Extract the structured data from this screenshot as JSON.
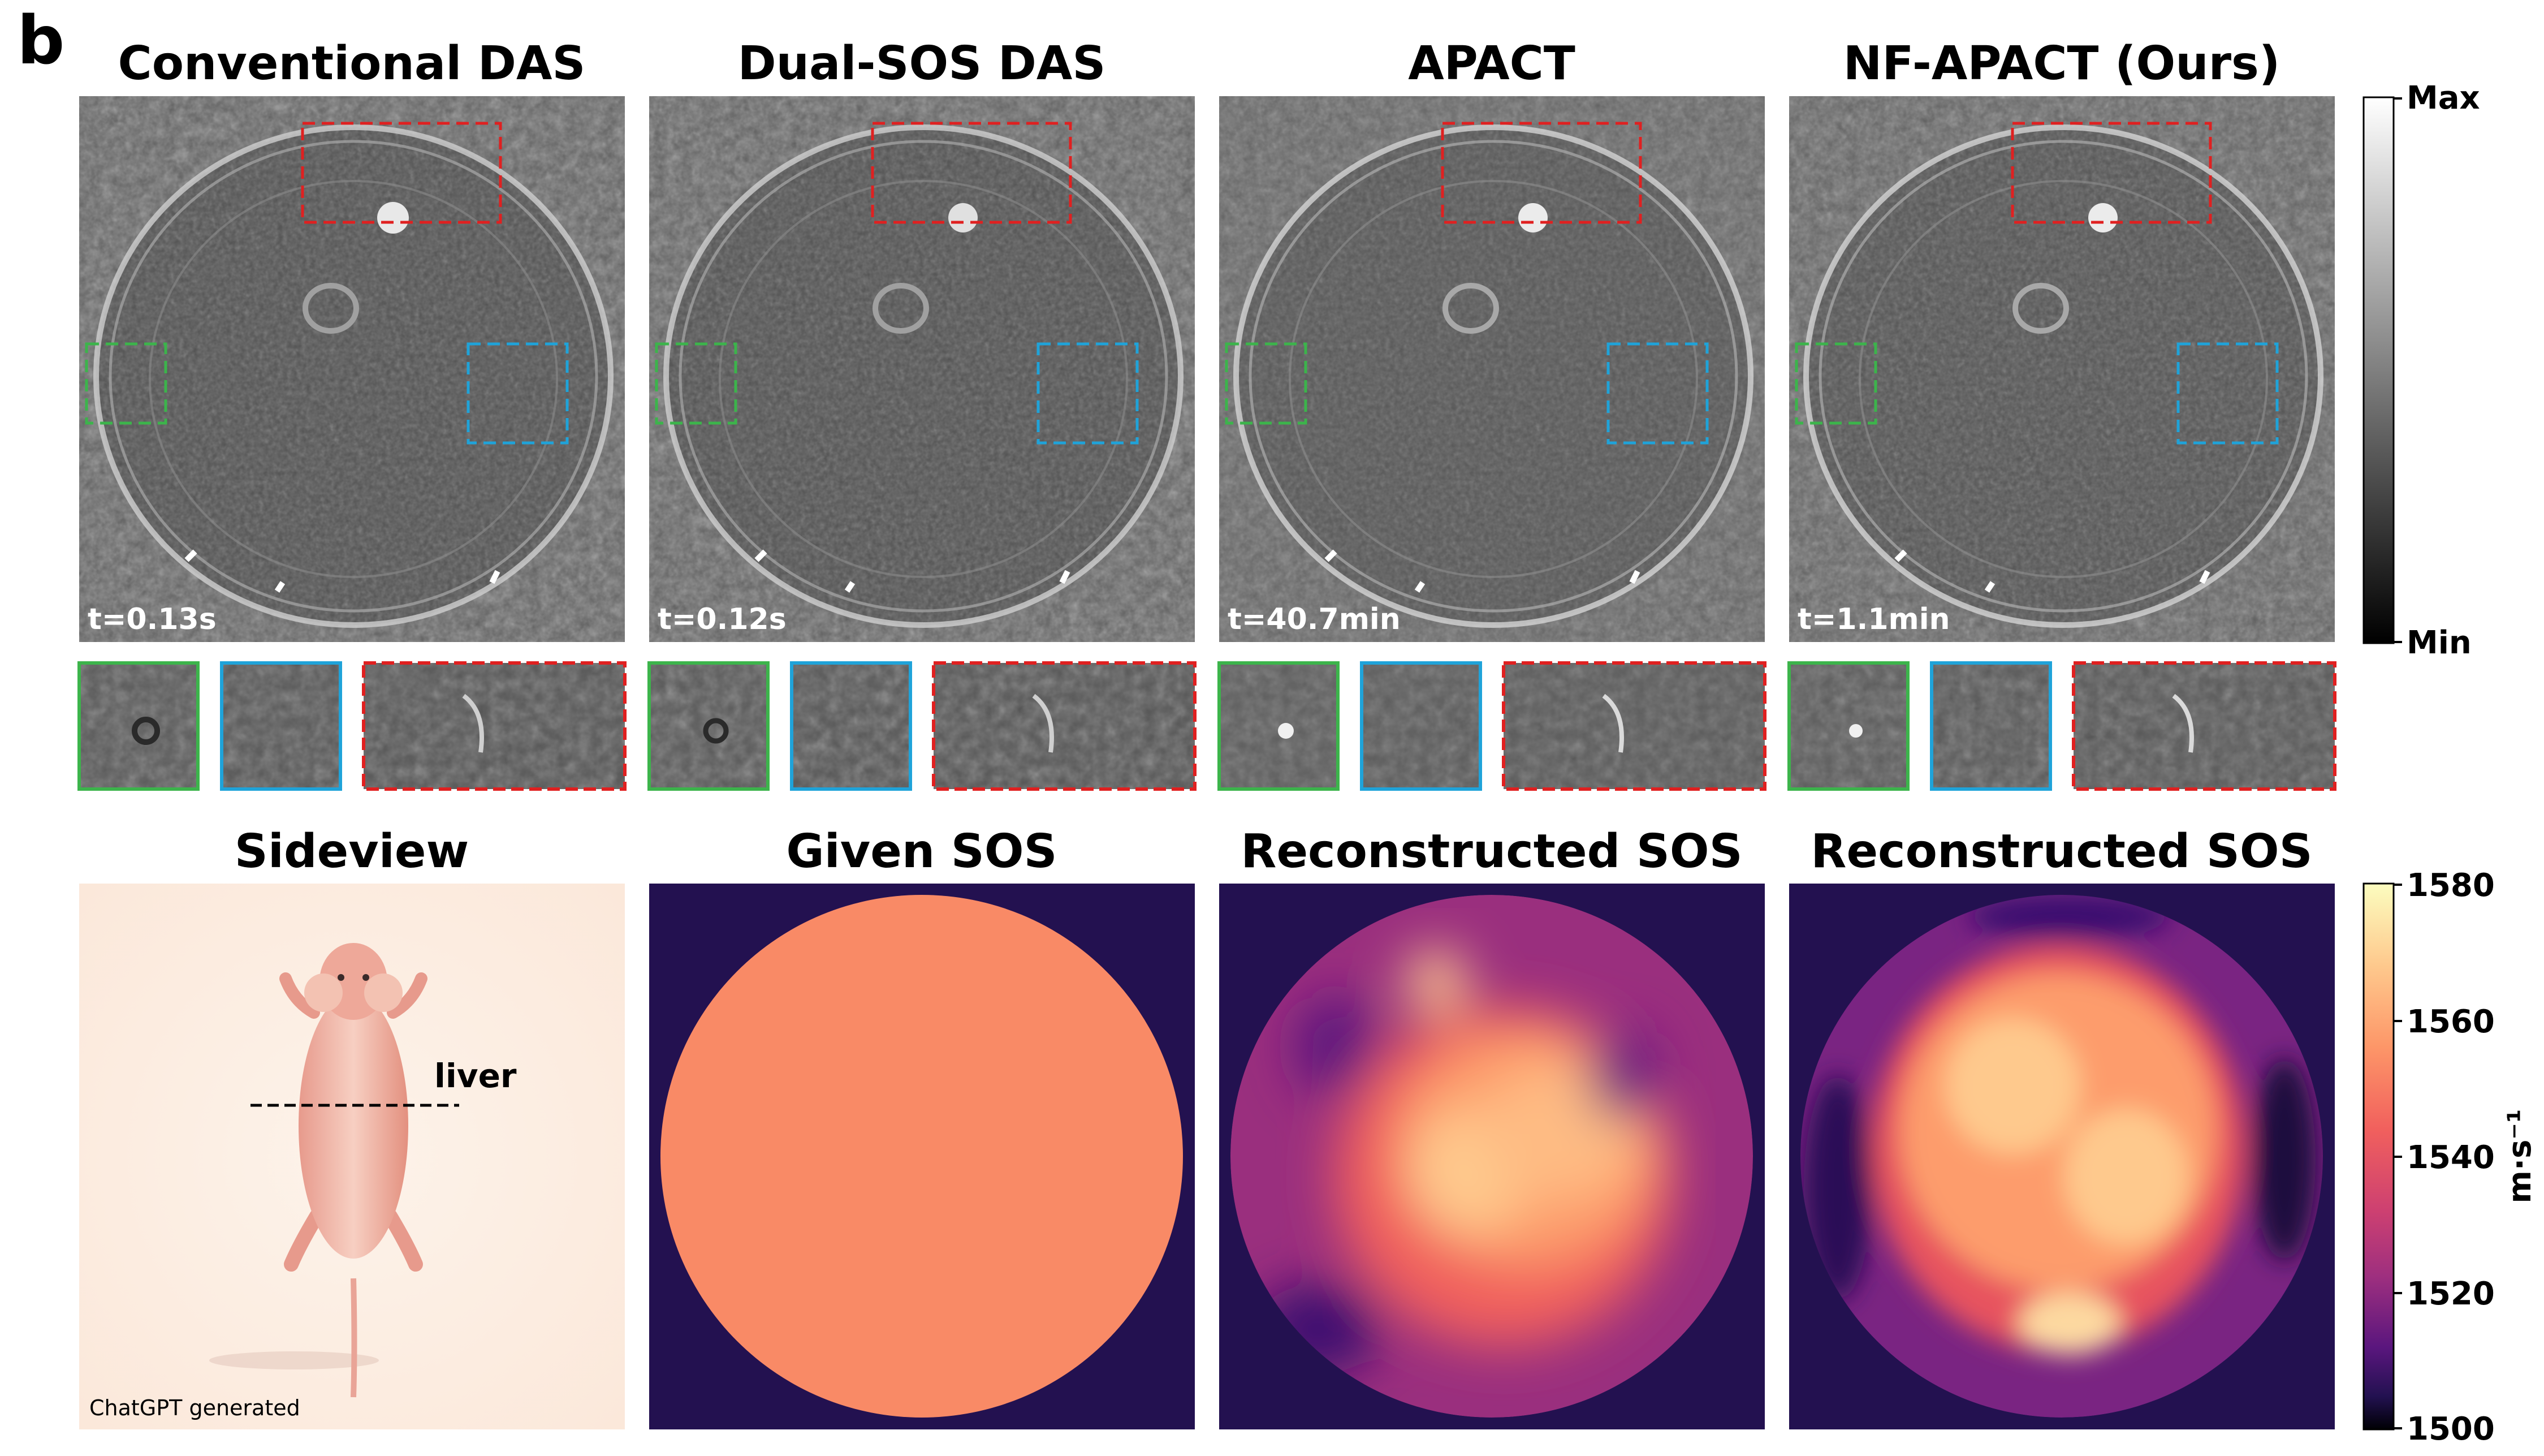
{
  "panel_label": "b",
  "top_row": [
    {
      "title": "Conventional DAS",
      "time": "t=0.13s"
    },
    {
      "title": "Dual-SOS DAS",
      "time": "t=0.12s"
    },
    {
      "title": "APACT",
      "time": "t=40.7min"
    },
    {
      "title": "NF-APACT (Ours)",
      "time": "t=1.1min"
    }
  ],
  "top_colorbar": {
    "max_label": "Max",
    "min_label": "Min"
  },
  "bottom_row": [
    {
      "title": "Sideview"
    },
    {
      "title": "Given SOS"
    },
    {
      "title": "Reconstructed SOS"
    },
    {
      "title": "Reconstructed SOS"
    }
  ],
  "sideview": {
    "organ_label": "liver",
    "credit": "ChatGPT generated"
  },
  "sos_colorbar": {
    "ticks": [
      "1580",
      "1560",
      "1540",
      "1520",
      "1500"
    ],
    "unit": "m·s⁻¹",
    "range": [
      1500,
      1580
    ],
    "colormap": "magma"
  },
  "roi_colors": {
    "green": "#3cb44b",
    "blue": "#1fa3d9",
    "red": "#e02020"
  }
}
